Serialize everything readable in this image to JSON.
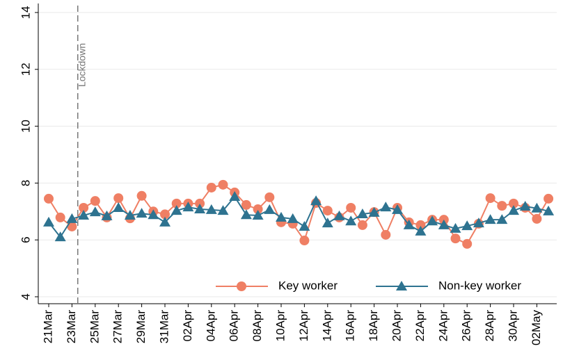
{
  "chart_data": {
    "type": "line",
    "categories": [
      "21Mar",
      null,
      "23Mar",
      null,
      "25Mar",
      null,
      "27Mar",
      null,
      "29Mar",
      null,
      "31Mar",
      null,
      "02Apr",
      null,
      "04Apr",
      null,
      "06Apr",
      null,
      "08Apr",
      null,
      "10Apr",
      null,
      "12Apr",
      null,
      "14Apr",
      null,
      "16Apr",
      null,
      "18Apr",
      null,
      "20Apr",
      null,
      "22Apr",
      null,
      "24Apr",
      null,
      "26Apr",
      null,
      "28Apr",
      null,
      "30Apr",
      null,
      "02May",
      null
    ],
    "series": [
      {
        "name": "Key worker",
        "color": "#ef7f64",
        "marker": "circle",
        "values": [
          7.45,
          6.79,
          6.47,
          7.13,
          7.37,
          6.79,
          7.47,
          6.76,
          7.55,
          7.0,
          6.9,
          7.28,
          7.28,
          7.28,
          7.84,
          7.94,
          7.67,
          7.23,
          7.08,
          7.5,
          6.62,
          6.57,
          5.98,
          7.3,
          7.03,
          6.79,
          7.13,
          6.52,
          6.98,
          6.18,
          7.13,
          6.62,
          6.52,
          6.71,
          6.71,
          6.05,
          5.86,
          6.57,
          7.47,
          7.2,
          7.28,
          7.13,
          6.74,
          7.45
        ]
      },
      {
        "name": "Non-key worker",
        "color": "#2e7390",
        "marker": "triangle",
        "values": [
          6.62,
          6.1,
          6.74,
          6.86,
          6.98,
          6.84,
          7.13,
          6.86,
          6.93,
          6.88,
          6.62,
          7.03,
          7.15,
          7.08,
          7.06,
          7.03,
          7.52,
          6.88,
          6.86,
          7.06,
          6.79,
          6.74,
          6.47,
          7.37,
          6.59,
          6.84,
          6.66,
          6.91,
          6.96,
          7.15,
          7.06,
          6.52,
          6.3,
          6.66,
          6.52,
          6.4,
          6.49,
          6.59,
          6.71,
          6.71,
          7.03,
          7.18,
          7.11,
          7.01
        ]
      }
    ],
    "ylim": [
      4,
      14
    ],
    "yticks": [
      4,
      6,
      8,
      10,
      12,
      14
    ],
    "grid": true,
    "legend": "bottom-right",
    "vline": {
      "at": "23Mar",
      "label": "Lockdown"
    }
  }
}
